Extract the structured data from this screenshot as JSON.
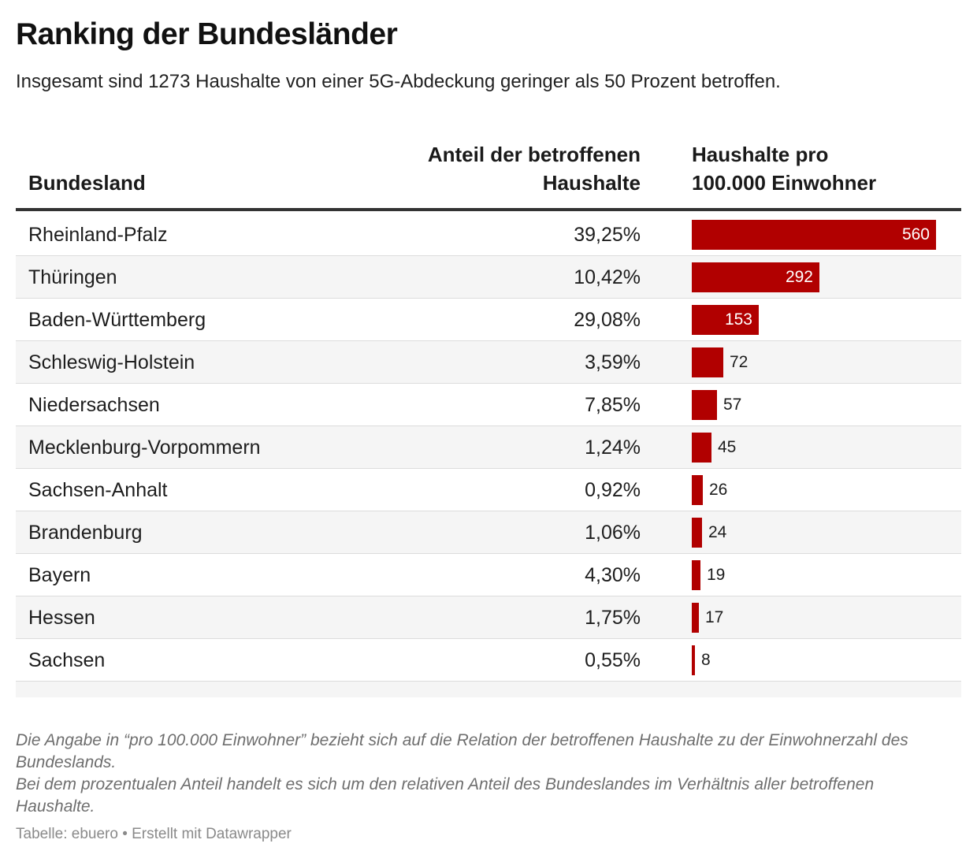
{
  "title": "Ranking der Bundesländer",
  "subtitle": "Insgesamt sind 1273 Haushalte von einer 5G-Abdeckung geringer als 50 Prozent betroffen.",
  "header": {
    "col_land": "Bundesland",
    "col_anteil_line1": "Anteil der betroffenen",
    "col_anteil_line2": "Haushalte",
    "col_haus_line1": "Haushalte pro",
    "col_haus_line2": "100.000 Einwohner"
  },
  "accent_color": "#b10000",
  "chart_data": {
    "type": "table",
    "columns": [
      "Bundesland",
      "Anteil der betroffenen Haushalte",
      "Haushalte pro 100.000 Einwohner"
    ],
    "bar_max": 560,
    "rows": [
      {
        "land": "Rheinland-Pfalz",
        "anteil": "39,25%",
        "value": 560
      },
      {
        "land": "Thüringen",
        "anteil": "10,42%",
        "value": 292
      },
      {
        "land": "Baden-Württemberg",
        "anteil": "29,08%",
        "value": 153
      },
      {
        "land": "Schleswig-Holstein",
        "anteil": "3,59%",
        "value": 72
      },
      {
        "land": "Niedersachsen",
        "anteil": "7,85%",
        "value": 57
      },
      {
        "land": "Mecklenburg-Vorpommern",
        "anteil": "1,24%",
        "value": 45
      },
      {
        "land": "Sachsen-Anhalt",
        "anteil": "0,92%",
        "value": 26
      },
      {
        "land": "Brandenburg",
        "anteil": "1,06%",
        "value": 24
      },
      {
        "land": "Bayern",
        "anteil": "4,30%",
        "value": 19
      },
      {
        "land": "Hessen",
        "anteil": "1,75%",
        "value": 17
      },
      {
        "land": "Sachsen",
        "anteil": "0,55%",
        "value": 8
      }
    ]
  },
  "notes": {
    "line1": "Die Angabe in “pro 100.000 Einwohner” bezieht sich auf die Relation der betroffenen Haushalte zu der Einwohnerzahl des Bundeslands.",
    "line2": "Bei dem prozentualen Anteil handelt es sich um den relativen Anteil des Bundeslandes im Verhältnis aller betroffenen Haushalte."
  },
  "source": "Tabelle: ebuero • Erstellt mit Datawrapper"
}
